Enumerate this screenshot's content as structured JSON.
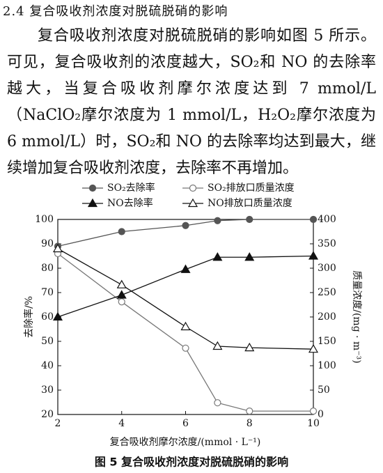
{
  "heading": "2.4  复合吸收剂浓度对脱硫脱硝的影响",
  "paragraph": "复合吸收剂浓度对脱硫脱硝的影响如图 5 所示。可见，复合吸收剂的浓度越大，SO₂和 NO 的去除率越大，当复合吸收剂摩尔浓度达到 7 mmol/L（NaClO₂摩尔浓度为 1 mmol/L，H₂O₂摩尔浓度为 6 mmol/L）时，SO₂和 NO 的去除率均达到最大，继续增加复合吸收剂浓度，去除率不再增加。",
  "chart_data": {
    "type": "line",
    "caption": "图 5   复合吸收剂浓度对脱硫脱硝的影响",
    "x_label": "复合吸收剂摩尔浓度/(mmol · L⁻¹)",
    "y_label": "去除率/%",
    "y2_label": "质量浓度/(mg · m⁻³)",
    "x": [
      2,
      4,
      6,
      7,
      8,
      10
    ],
    "xlim": [
      2,
      10
    ],
    "xticks": [
      2,
      4,
      6,
      8,
      10
    ],
    "ylim": [
      20,
      100
    ],
    "yticks": [
      20,
      30,
      40,
      50,
      60,
      70,
      80,
      90,
      100
    ],
    "y2lim": [
      0,
      400
    ],
    "y2ticks": [
      0,
      50,
      100,
      150,
      200,
      250,
      300,
      350,
      400
    ],
    "series": [
      {
        "name": "SO₂去除率",
        "color": "#555555",
        "marker": "circle",
        "filled": true,
        "values": [
          89,
          95,
          97.5,
          99.5,
          100,
          100
        ]
      },
      {
        "name": "SO₂排放口质量浓度",
        "color": "#777777",
        "marker": "circle",
        "filled": false,
        "axis": "y2",
        "values": [
          330,
          231,
          136,
          24,
          7,
          7
        ]
      },
      {
        "name": "NO去除率",
        "color": "#111111",
        "marker": "triangle",
        "filled": true,
        "values": [
          60,
          69,
          79.5,
          84.5,
          84.5,
          85
        ]
      },
      {
        "name": "NO排放口质量浓度",
        "color": "#111111",
        "marker": "triangle",
        "filled": false,
        "axis": "y2",
        "values": [
          340,
          266,
          180,
          140,
          137,
          134
        ]
      }
    ]
  }
}
